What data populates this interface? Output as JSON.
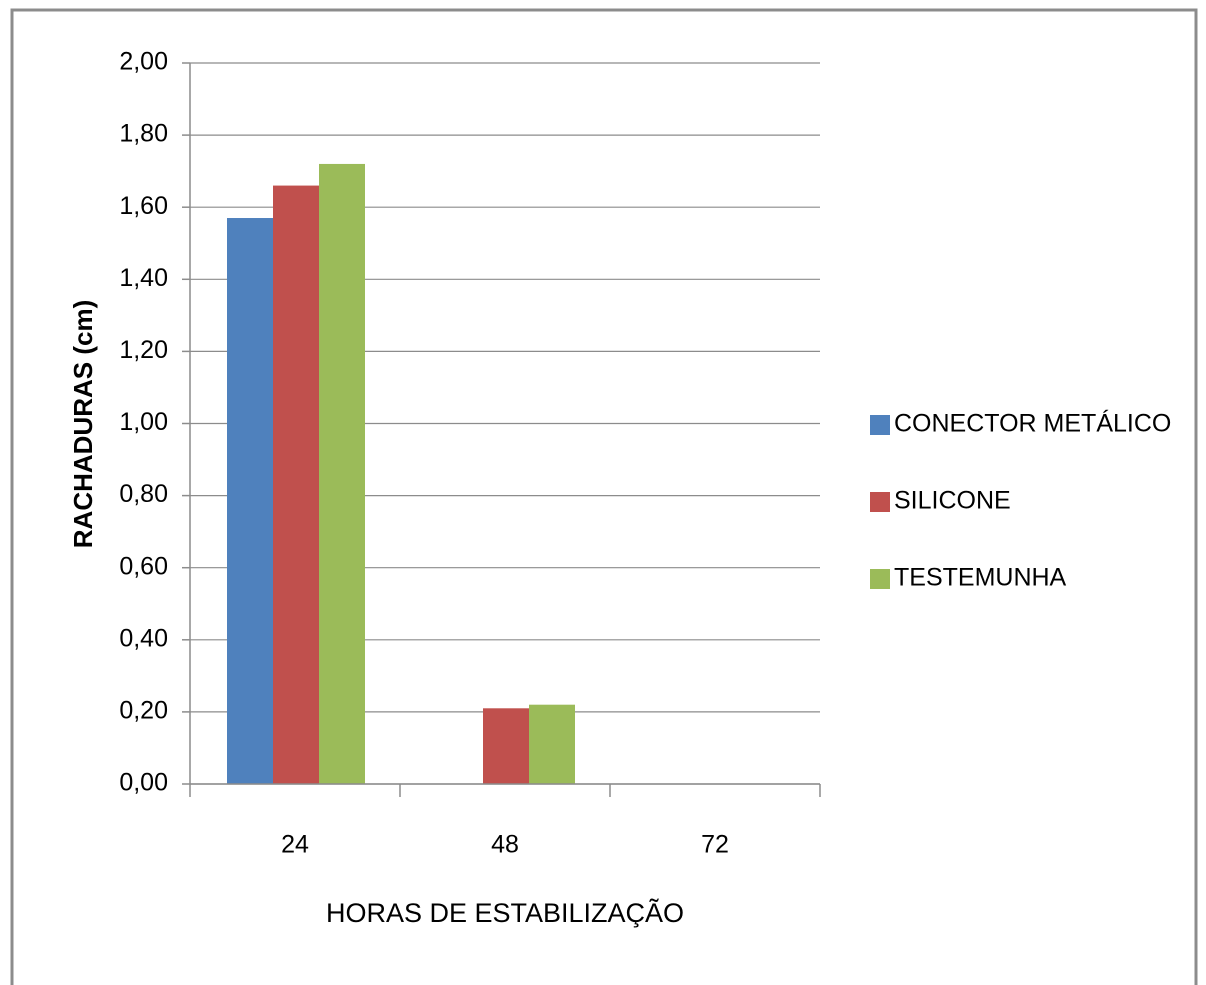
{
  "chart_data": {
    "type": "bar",
    "x_label": "HORAS DE ESTABILIZAÇÃO",
    "y_label": "RACHADURAS (cm)",
    "categories": [
      "24",
      "48",
      "72"
    ],
    "series": [
      {
        "name": "CONECTOR METÁLICO",
        "color": "#4f81bd",
        "values": [
          1.57,
          0,
          0
        ]
      },
      {
        "name": "SILICONE",
        "color": "#c0504d",
        "values": [
          1.66,
          0.21,
          0
        ]
      },
      {
        "name": "TESTEMUNHA",
        "color": "#9bbb59",
        "values": [
          1.72,
          0.22,
          0
        ]
      }
    ],
    "ylim": [
      0,
      2
    ],
    "yticks": [
      {
        "value": 0,
        "label": "0,00"
      },
      {
        "value": 0.2,
        "label": "0,20"
      },
      {
        "value": 0.4,
        "label": "0,40"
      },
      {
        "value": 0.6,
        "label": "0,60"
      },
      {
        "value": 0.8,
        "label": "0,80"
      },
      {
        "value": 1,
        "label": "1,00"
      },
      {
        "value": 1.2,
        "label": "1,20"
      },
      {
        "value": 1.4,
        "label": "1,40"
      },
      {
        "value": 1.6,
        "label": "1,60"
      },
      {
        "value": 1.8,
        "label": "1,80"
      },
      {
        "value": 2,
        "label": "2,00"
      }
    ],
    "grid": true,
    "legend": "right"
  }
}
